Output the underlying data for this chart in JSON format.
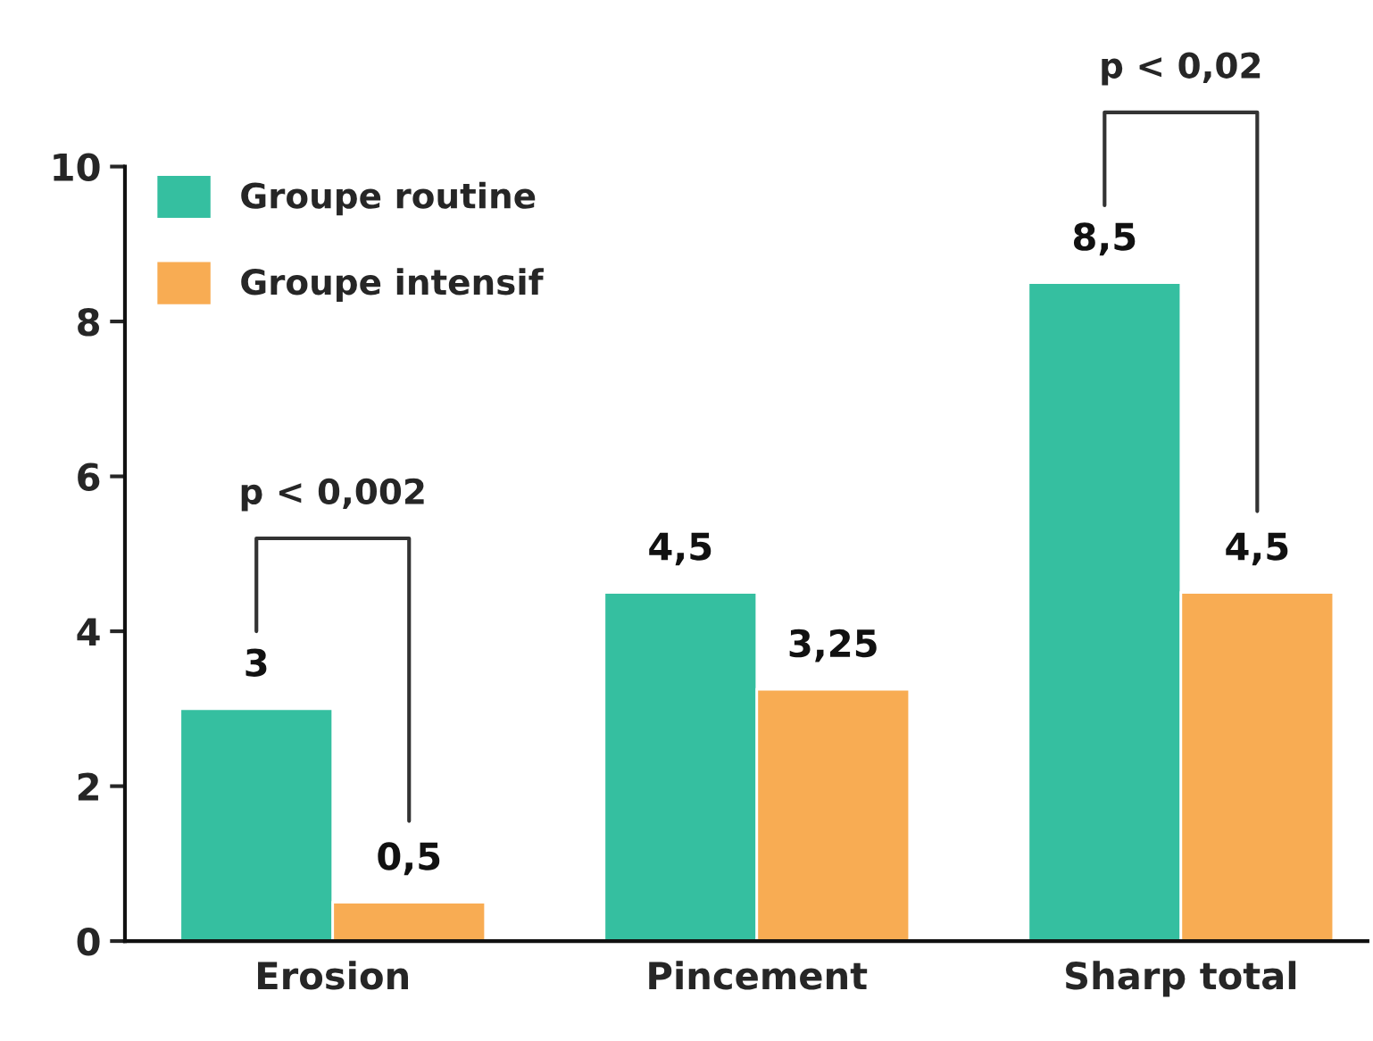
{
  "chart_data": {
    "type": "bar",
    "categories": [
      "Erosion",
      "Pincement",
      "Sharp total"
    ],
    "series": [
      {
        "name": "Groupe routine",
        "color": "#35bfa0",
        "values": [
          3,
          4.5,
          8.5
        ],
        "value_labels": [
          "3",
          "4,5",
          "8,5"
        ]
      },
      {
        "name": "Groupe intensif",
        "color": "#f8ac53",
        "values": [
          0.5,
          3.25,
          4.5
        ],
        "value_labels": [
          "0,5",
          "3,25",
          "4,5"
        ]
      }
    ],
    "ylim": [
      0,
      10
    ],
    "yticks": [
      0,
      2,
      4,
      6,
      8,
      10
    ],
    "grid": false,
    "legend": "top left",
    "annotations": [
      "p < 0,002",
      "p < 0,02"
    ]
  }
}
